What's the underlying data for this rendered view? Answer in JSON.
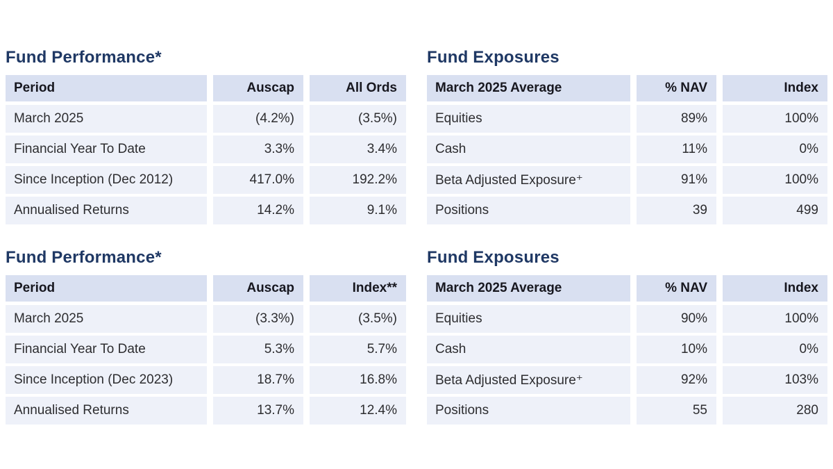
{
  "colors": {
    "title_color": "#1f3864",
    "header_bg": "#d9e0f1",
    "row_bg": "#eef1f9",
    "header_text": "#17171f",
    "body_text": "#2d2d30",
    "page_bg": "#ffffff"
  },
  "sections": [
    {
      "title": "Fund Performance*",
      "columns": [
        "Period",
        "Auscap",
        "All Ords"
      ],
      "rows": [
        [
          "March 2025",
          "(4.2%)",
          "(3.5%)"
        ],
        [
          "Financial Year To Date",
          "3.3%",
          "3.4%"
        ],
        [
          "Since Inception (Dec 2012)",
          "417.0%",
          "192.2%"
        ],
        [
          "Annualised Returns",
          "14.2%",
          "9.1%"
        ]
      ]
    },
    {
      "title": "Fund Exposures",
      "columns": [
        "March 2025 Average",
        "% NAV",
        "Index"
      ],
      "rows": [
        [
          "Equities",
          "89%",
          "100%"
        ],
        [
          "Cash",
          "11%",
          "0%"
        ],
        [
          "Beta Adjusted Exposure⁺",
          "91%",
          "100%"
        ],
        [
          "Positions",
          "39",
          "499"
        ]
      ]
    },
    {
      "title": "Fund Performance*",
      "columns": [
        "Period",
        "Auscap",
        "Index**"
      ],
      "rows": [
        [
          "March 2025",
          "(3.3%)",
          "(3.5%)"
        ],
        [
          "Financial Year To Date",
          "5.3%",
          "5.7%"
        ],
        [
          "Since Inception (Dec 2023)",
          "18.7%",
          "16.8%"
        ],
        [
          "Annualised Returns",
          "13.7%",
          "12.4%"
        ]
      ]
    },
    {
      "title": "Fund Exposures",
      "columns": [
        "March 2025 Average",
        "% NAV",
        "Index"
      ],
      "rows": [
        [
          "Equities",
          "90%",
          "100%"
        ],
        [
          "Cash",
          "10%",
          "0%"
        ],
        [
          "Beta Adjusted Exposure⁺",
          "92%",
          "103%"
        ],
        [
          "Positions",
          "55",
          "280"
        ]
      ]
    }
  ]
}
